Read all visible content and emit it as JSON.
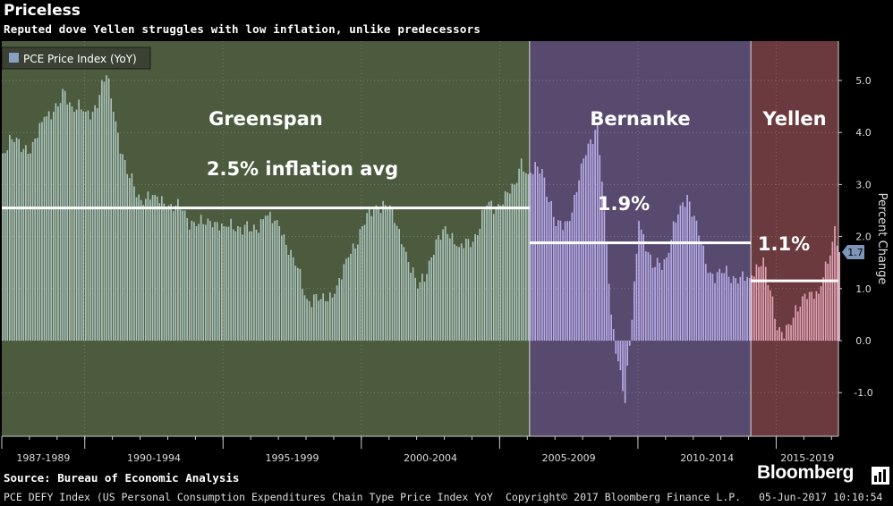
{
  "header": {
    "title": "Priceless",
    "subtitle": "Reputed dove Yellen struggles with low inflation, unlike predecessors"
  },
  "footer": {
    "source": "Source: Bureau of Economic Analysis",
    "brand": "Bloomberg",
    "ticker": "PCE DEFY Index (US Personal Consumption Expenditures Chain Type Price Index YoY",
    "copyright": "Copyright© 2017 Bloomberg Finance L.P.",
    "timestamp": "05-Jun-2017 10:10:54"
  },
  "colors": {
    "greenspan_bg": "#4c5a3e",
    "bernanke_bg": "#574a6e",
    "yellen_bg": "#6b3a3e",
    "greenspan_bar": "#a9c2bb",
    "bernanke_bar": "#b6abe6",
    "yellen_bar": "#e0a2b4",
    "avg_line": "#ffffff",
    "legend_swatch": "#8aa0c0"
  },
  "chart_data": {
    "type": "bar",
    "ylabel": "Percent Change",
    "ylim": [
      -1.7,
      5.7
    ],
    "y_ticks": [
      "-1.0",
      "0.0",
      "1.0",
      "2.0",
      "3.0",
      "4.0",
      "5.0"
    ],
    "x_tick_labels": [
      "1987-1989",
      "1990-1994",
      "1995-1999",
      "2000-2004",
      "2005-2009",
      "2010-2014",
      "2015-2019"
    ],
    "legend": [
      "PCE Price Index (YoY)"
    ],
    "last_value_label": "1.7",
    "grid": true,
    "x_start": "1987-01",
    "x_end": "2017-04",
    "regions": [
      {
        "name": "Greenspan",
        "start": "1987-08",
        "end": "2006-01",
        "avg": 2.55,
        "avg_label": "2.5% inflation avg"
      },
      {
        "name": "Bernanke",
        "start": "2006-02",
        "end": "2014-01",
        "avg": 1.88,
        "avg_label": "1.9%"
      },
      {
        "name": "Yellen",
        "start": "2014-02",
        "end": "2017-04",
        "avg": 1.15,
        "avg_label": "1.1%"
      }
    ],
    "series": [
      {
        "name": "PCE Price Index (YoY)",
        "points": [
          [
            "1987-01",
            3.6
          ],
          [
            "1987-07",
            3.9
          ],
          [
            "1988-01",
            3.6
          ],
          [
            "1988-07",
            4.3
          ],
          [
            "1989-01",
            4.5
          ],
          [
            "1989-04",
            4.8
          ],
          [
            "1989-07",
            4.5
          ],
          [
            "1990-01",
            4.4
          ],
          [
            "1990-04",
            4.4
          ],
          [
            "1990-10",
            5.1
          ],
          [
            "1991-01",
            4.4
          ],
          [
            "1991-07",
            3.2
          ],
          [
            "1992-01",
            2.7
          ],
          [
            "1992-07",
            2.8
          ],
          [
            "1993-01",
            2.6
          ],
          [
            "1993-07",
            2.5
          ],
          [
            "1994-01",
            2.2
          ],
          [
            "1994-07",
            2.3
          ],
          [
            "1995-01",
            2.2
          ],
          [
            "1995-07",
            2.2
          ],
          [
            "1996-01",
            2.1
          ],
          [
            "1996-07",
            2.4
          ],
          [
            "1997-01",
            2.2
          ],
          [
            "1997-07",
            1.6
          ],
          [
            "1998-01",
            0.8
          ],
          [
            "1998-07",
            0.8
          ],
          [
            "1999-01",
            0.9
          ],
          [
            "1999-07",
            1.6
          ],
          [
            "2000-01",
            2.2
          ],
          [
            "2000-07",
            2.6
          ],
          [
            "2001-01",
            2.6
          ],
          [
            "2001-07",
            1.8
          ],
          [
            "2002-01",
            1.0
          ],
          [
            "2002-07",
            1.6
          ],
          [
            "2003-01",
            2.2
          ],
          [
            "2003-07",
            1.8
          ],
          [
            "2004-01",
            1.9
          ],
          [
            "2004-07",
            2.6
          ],
          [
            "2005-01",
            2.6
          ],
          [
            "2005-07",
            3.0
          ],
          [
            "2005-10",
            3.5
          ],
          [
            "2006-01",
            3.2
          ],
          [
            "2006-07",
            3.3
          ],
          [
            "2007-01",
            2.2
          ],
          [
            "2007-07",
            2.3
          ],
          [
            "2008-01",
            3.5
          ],
          [
            "2008-07",
            4.2
          ],
          [
            "2008-10",
            2.5
          ],
          [
            "2009-01",
            0.5
          ],
          [
            "2009-07",
            -1.2
          ],
          [
            "2009-10",
            0.4
          ],
          [
            "2010-01",
            2.3
          ],
          [
            "2010-07",
            1.4
          ],
          [
            "2011-01",
            1.6
          ],
          [
            "2011-07",
            2.6
          ],
          [
            "2011-10",
            2.8
          ],
          [
            "2012-01",
            2.4
          ],
          [
            "2012-07",
            1.3
          ],
          [
            "2013-01",
            1.3
          ],
          [
            "2013-07",
            1.2
          ],
          [
            "2014-01",
            1.2
          ],
          [
            "2014-07",
            1.6
          ],
          [
            "2015-01",
            0.2
          ],
          [
            "2015-07",
            0.3
          ],
          [
            "2016-01",
            0.9
          ],
          [
            "2016-07",
            0.9
          ],
          [
            "2017-01",
            1.9
          ],
          [
            "2017-02",
            2.2
          ],
          [
            "2017-04",
            1.7
          ]
        ]
      }
    ]
  }
}
